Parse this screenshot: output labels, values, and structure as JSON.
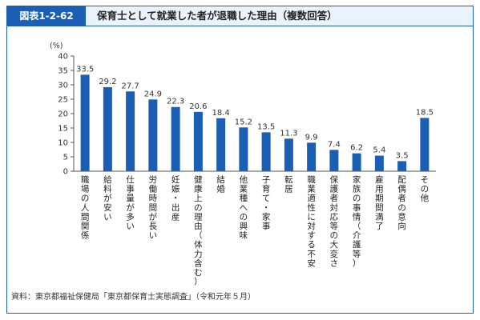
{
  "figure": {
    "label": "図表1-2-62",
    "title": "保育士として就業した者が退職した理由（複数回答）",
    "source": "資料：東京都福祉保健局「東京都保育士実態調査」（令和元年５月）"
  },
  "colors": {
    "bar": "#1a5fb4",
    "frame": "#1a5fb4",
    "header_bg": "#eaf2fb"
  },
  "chart_data": {
    "type": "bar",
    "unit": "(%)",
    "ylim": [
      0,
      40
    ],
    "yticks": [
      0,
      5,
      10,
      15,
      20,
      25,
      30,
      35,
      40
    ],
    "categories": [
      "職場の人間関係",
      "給料が安い",
      "仕事量が多い",
      "労働時間が長い",
      "妊娠・出産",
      "健康上の理由（体力含む）",
      "結婚",
      "他業種への興味",
      "子育て・家事",
      "転居",
      "職業適性に対する不安",
      "保護者対応等の大変さ",
      "家族の事情（介護等）",
      "雇用期間満了",
      "配偶者の意向",
      "その他"
    ],
    "values": [
      33.5,
      29.2,
      27.7,
      24.9,
      22.3,
      20.6,
      18.4,
      15.2,
      13.5,
      11.3,
      9.9,
      7.4,
      6.2,
      5.4,
      3.5,
      18.5
    ],
    "value_labels": [
      "33.5",
      "29.2",
      "27.7",
      "24.9",
      "22.3",
      "20.6",
      "18.4",
      "15.2",
      "13.5",
      "11.3",
      "9.9",
      "7.4",
      "6.2",
      "5.4",
      "3.5",
      "18.5"
    ],
    "grid": false
  }
}
